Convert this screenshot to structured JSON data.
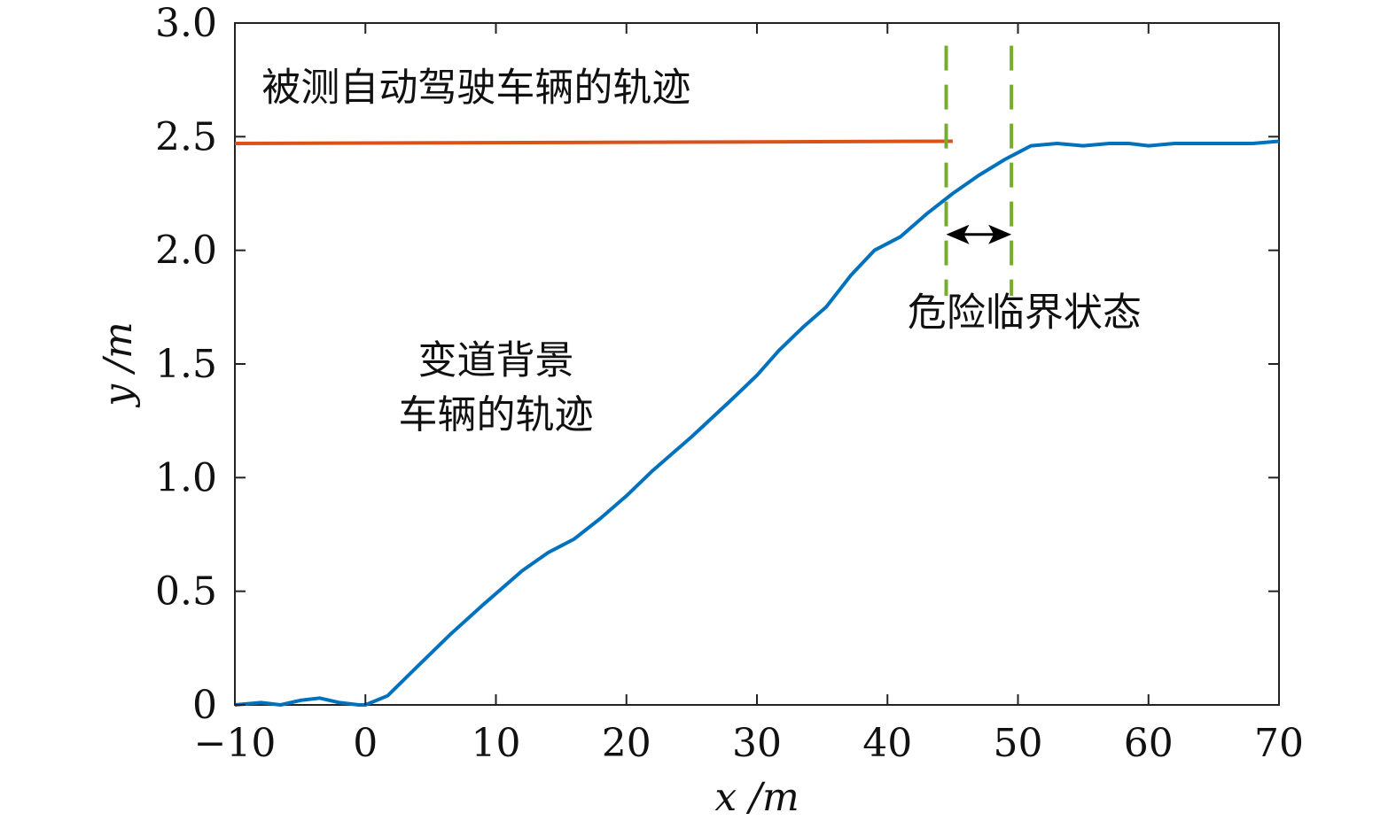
{
  "chart_data": {
    "type": "line",
    "xlabel": "x /m",
    "ylabel": "y /m",
    "xlim": [
      -10,
      70
    ],
    "ylim": [
      0,
      3.0
    ],
    "x_ticks": [
      -10,
      0,
      10,
      20,
      30,
      40,
      50,
      60,
      70
    ],
    "x_tick_labels": [
      "−10",
      "0",
      "10",
      "20",
      "30",
      "40",
      "50",
      "60",
      "70"
    ],
    "y_ticks": [
      0,
      0.5,
      1.0,
      1.5,
      2.0,
      2.5,
      3.0
    ],
    "y_tick_labels": [
      "0",
      "0.5",
      "1.0",
      "1.5",
      "2.0",
      "2.5",
      "3.0"
    ],
    "grid": false,
    "series": [
      {
        "color": "#0072bd",
        "x": [
          -10,
          -8,
          -6.5,
          -5,
          -3.5,
          -2,
          -0.5,
          0,
          1.7,
          4,
          6.5,
          9,
          12,
          14,
          16,
          18,
          20,
          22,
          25,
          28,
          30,
          31.7,
          33.5,
          35.3,
          37.2,
          39,
          41,
          43,
          45,
          47,
          49,
          51,
          53,
          55,
          57,
          58.5,
          60,
          62,
          65,
          68,
          70
        ],
        "y": [
          0.0,
          0.01,
          0.0,
          0.02,
          0.03,
          0.01,
          0.0,
          0.0,
          0.04,
          0.17,
          0.31,
          0.44,
          0.59,
          0.67,
          0.73,
          0.82,
          0.92,
          1.03,
          1.18,
          1.34,
          1.45,
          1.56,
          1.66,
          1.75,
          1.89,
          2.0,
          2.06,
          2.16,
          2.25,
          2.33,
          2.4,
          2.46,
          2.47,
          2.46,
          2.47,
          2.47,
          2.46,
          2.47,
          2.47,
          2.47,
          2.48
        ]
      },
      {
        "color": "#d95319",
        "x": [
          -10,
          45
        ],
        "y": [
          2.47,
          2.48
        ]
      }
    ],
    "vlines": [
      {
        "x": 44.5,
        "y": [
          1.8,
          2.9
        ],
        "color": "#77ac30"
      },
      {
        "x": 49.5,
        "y": [
          1.8,
          2.9
        ],
        "color": "#77ac30"
      }
    ],
    "double_arrow": {
      "x": [
        44.5,
        49.5
      ],
      "y": 2.07
    },
    "annotations": [
      {
        "text": "被测自动驾驶车辆的轨迹",
        "x": 8.5,
        "y": 2.66
      },
      {
        "text": "危险临界状态",
        "x": 50.5,
        "y": 1.67
      },
      {
        "text": "变道背景",
        "x": 10,
        "y": 1.46
      },
      {
        "text": "车辆的轨迹",
        "x": 10,
        "y": 1.22
      }
    ]
  }
}
